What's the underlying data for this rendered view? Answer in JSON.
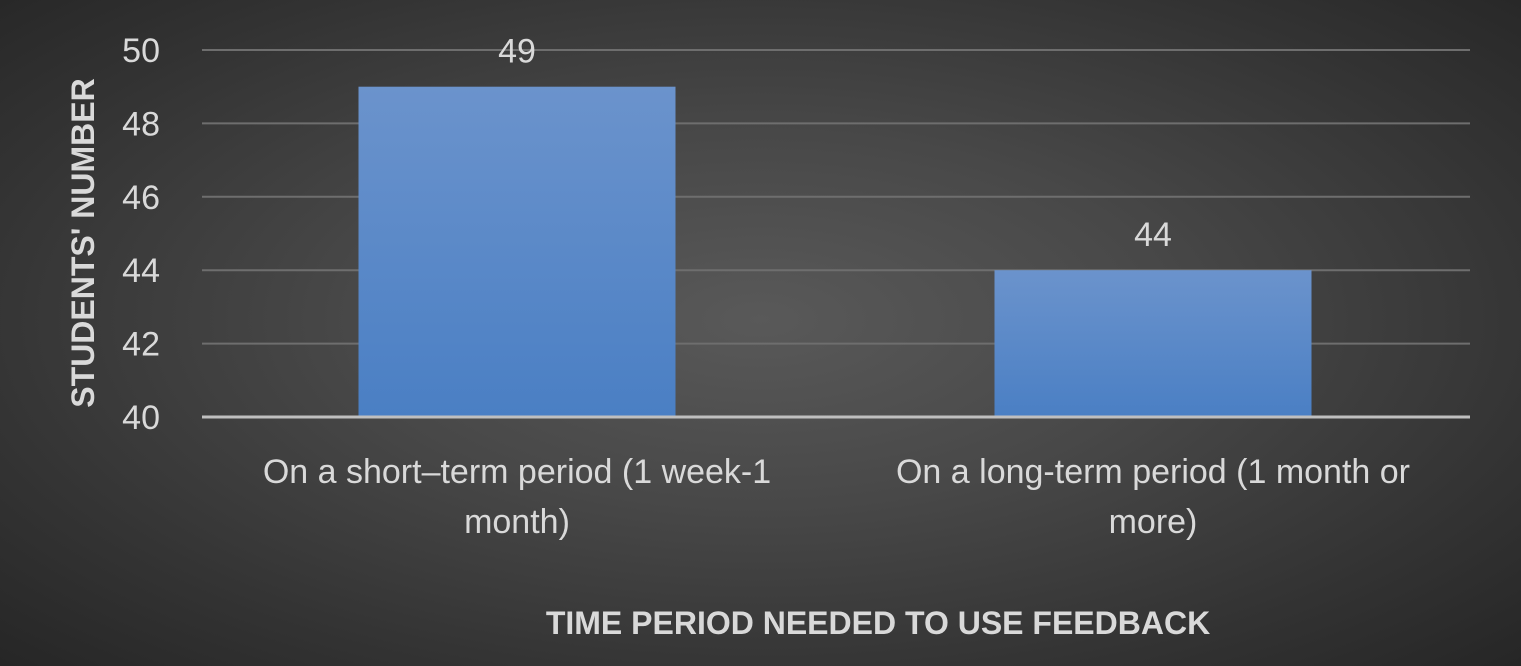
{
  "chart_data": {
    "type": "bar",
    "categories": [
      "On a short–term period (1 week-1 month)",
      "On a long-term period (1 month or more)"
    ],
    "category_lines": [
      [
        "On a short–term period (1 week-1",
        "month)"
      ],
      [
        "On a long-term period (1 month or",
        "more)"
      ]
    ],
    "values": [
      49,
      44
    ],
    "data_labels": [
      "49",
      "44"
    ],
    "xlabel": "TIME PERIOD NEEDED TO USE FEEDBACK",
    "ylabel": "STUDENTS' NUMBER",
    "ylim": [
      40,
      50
    ],
    "yticks": [
      "40",
      "42",
      "44",
      "46",
      "48",
      "50"
    ],
    "grid": true,
    "legend": "none"
  },
  "colors": {
    "bar_top": "#6b93cc",
    "bar_bottom": "#4a7fc4",
    "gridline": "#6e6e6e",
    "axis_line": "#bfbfbf",
    "text": "#d9d9d9"
  }
}
